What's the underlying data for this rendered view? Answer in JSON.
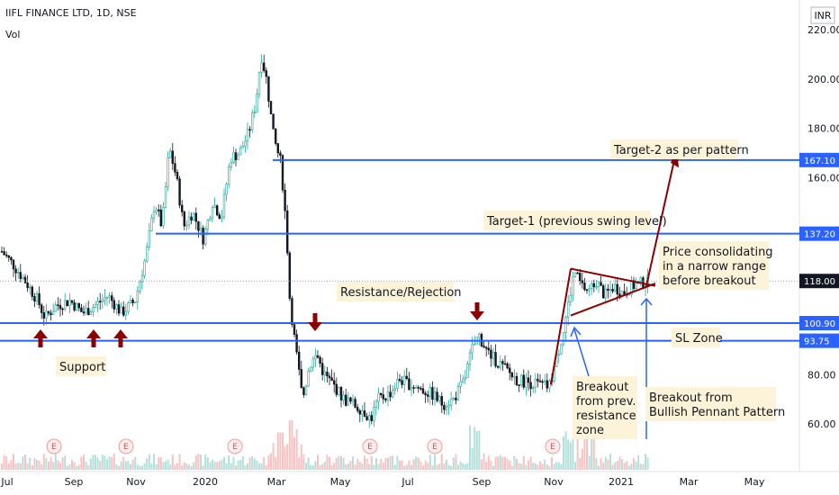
{
  "header": {
    "title": "IIFL FINANCE LTD, 1D, NSE",
    "volume_label": "Vol",
    "currency": "INR"
  },
  "chart_data": {
    "type": "candlestick",
    "y_axis": {
      "ticks": [
        60,
        80,
        100,
        120,
        140,
        160,
        180,
        200,
        220
      ],
      "tick_labels": [
        "60.00",
        "80.00",
        "",
        "",
        "",
        "160.00",
        "180.00",
        "200.00",
        "220.00"
      ],
      "range": [
        50,
        225
      ]
    },
    "x_axis": {
      "ticks": [
        "Jul",
        "Sep",
        "Nov",
        "2020",
        "Mar",
        "May",
        "Jul",
        "Sep",
        "Nov",
        "2021",
        "Mar",
        "May"
      ]
    },
    "current_price": {
      "value": 118.0,
      "label": "118.00",
      "color": "#131722"
    },
    "levels": [
      {
        "name": "target-2",
        "value": 167.1,
        "label": "167.10",
        "color": "#2962ff"
      },
      {
        "name": "target-1",
        "value": 137.2,
        "label": "137.20",
        "color": "#2962ff"
      },
      {
        "name": "resistance",
        "value": 100.9,
        "label": "100.90",
        "color": "#2962ff"
      },
      {
        "name": "sl",
        "value": 93.75,
        "label": "93.75",
        "color": "#2962ff"
      }
    ],
    "annotations": [
      {
        "name": "target2-note",
        "text": "Target-2 as per pattern"
      },
      {
        "name": "target1-note",
        "text": "Target-1 (previous swing level)"
      },
      {
        "name": "consolidation-note",
        "lines": [
          "Price consolidating",
          "in a narrow range",
          "before breakout"
        ]
      },
      {
        "name": "resistance-note",
        "text": "Resistance/Rejection"
      },
      {
        "name": "sl-note",
        "text": "SL Zone"
      },
      {
        "name": "support-note",
        "text": "Support"
      },
      {
        "name": "breakout-prev-note",
        "lines": [
          "Breakout",
          "from prev.",
          "resistance",
          "zone"
        ]
      },
      {
        "name": "breakout-pennant-note",
        "lines": [
          "Breakout from",
          "Bullish Pennant Pattern"
        ]
      }
    ],
    "earnings_markers": "E",
    "colors": {
      "up": "#26a69a",
      "down": "#131722",
      "level": "#2962ff",
      "pattern": "#8b0000"
    }
  }
}
